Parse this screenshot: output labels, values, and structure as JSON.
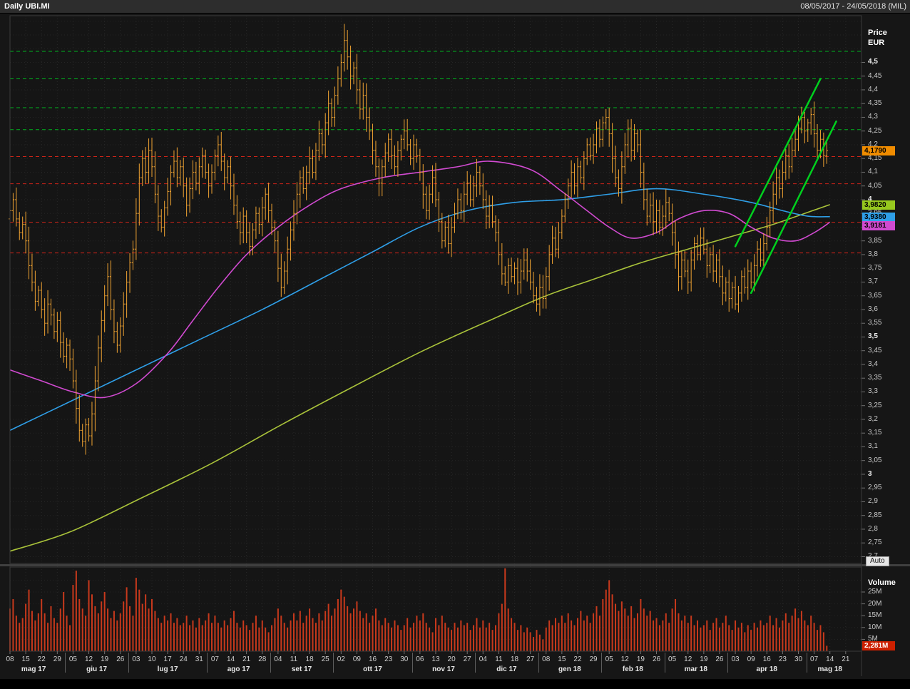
{
  "window": {
    "title_left": "Daily UBI.MI",
    "title_right": "08/05/2017 - 24/05/2018 (MIL)"
  },
  "colors": {
    "background": "#161616",
    "bars": "#f0a332",
    "volume": "#c8391c",
    "ma_fast": "#d04ad0",
    "ma_mid": "#2f9fe8",
    "ma_slow": "#a9c23a",
    "resistance": "#00b41e",
    "support": "#cd2418",
    "trendline": "#00d01e"
  },
  "price_axis": {
    "title_price": "Price",
    "title_currency": "EUR",
    "auto_button": "Auto",
    "ticks": [
      {
        "label": "4,5",
        "value": 4.5,
        "bold": true
      },
      {
        "label": "4,45",
        "value": 4.45,
        "bold": false
      },
      {
        "label": "4,4",
        "value": 4.4,
        "bold": false
      },
      {
        "label": "4,35",
        "value": 4.35,
        "bold": false
      },
      {
        "label": "4,3",
        "value": 4.3,
        "bold": false
      },
      {
        "label": "4,25",
        "value": 4.25,
        "bold": false
      },
      {
        "label": "4,2",
        "value": 4.2,
        "bold": false
      },
      {
        "label": "4,15",
        "value": 4.15,
        "bold": false
      },
      {
        "label": "4,1",
        "value": 4.1,
        "bold": false
      },
      {
        "label": "4,05",
        "value": 4.05,
        "bold": false
      },
      {
        "label": "4",
        "value": 4.0,
        "bold": true
      },
      {
        "label": "3,95",
        "value": 3.95,
        "bold": false
      },
      {
        "label": "3,9",
        "value": 3.9,
        "bold": false
      },
      {
        "label": "3,85",
        "value": 3.85,
        "bold": false
      },
      {
        "label": "3,8",
        "value": 3.8,
        "bold": false
      },
      {
        "label": "3,75",
        "value": 3.75,
        "bold": false
      },
      {
        "label": "3,7",
        "value": 3.7,
        "bold": false
      },
      {
        "label": "3,65",
        "value": 3.65,
        "bold": false
      },
      {
        "label": "3,6",
        "value": 3.6,
        "bold": false
      },
      {
        "label": "3,55",
        "value": 3.55,
        "bold": false
      },
      {
        "label": "3,5",
        "value": 3.5,
        "bold": true
      },
      {
        "label": "3,45",
        "value": 3.45,
        "bold": false
      },
      {
        "label": "3,4",
        "value": 3.4,
        "bold": false
      },
      {
        "label": "3,35",
        "value": 3.35,
        "bold": false
      },
      {
        "label": "3,3",
        "value": 3.3,
        "bold": false
      },
      {
        "label": "3,25",
        "value": 3.25,
        "bold": false
      },
      {
        "label": "3,2",
        "value": 3.2,
        "bold": false
      },
      {
        "label": "3,15",
        "value": 3.15,
        "bold": false
      },
      {
        "label": "3,1",
        "value": 3.1,
        "bold": false
      },
      {
        "label": "3,05",
        "value": 3.05,
        "bold": false
      },
      {
        "label": "3",
        "value": 3.0,
        "bold": true
      },
      {
        "label": "2,95",
        "value": 2.95,
        "bold": false
      },
      {
        "label": "2,9",
        "value": 2.9,
        "bold": false
      },
      {
        "label": "2,85",
        "value": 2.85,
        "bold": false
      },
      {
        "label": "2,8",
        "value": 2.8,
        "bold": false
      },
      {
        "label": "2,75",
        "value": 2.75,
        "bold": false
      },
      {
        "label": "2,7",
        "value": 2.7,
        "bold": false
      }
    ],
    "badges": [
      {
        "name": "last-price",
        "label": "4,1790",
        "value": 4.179,
        "color": "#f08c00",
        "text_color": "#000"
      },
      {
        "name": "ma-slow",
        "label": "3,9820",
        "value": 3.982,
        "color": "#96c81e",
        "text_color": "#000"
      },
      {
        "name": "ma-mid",
        "label": "3,9380",
        "value": 3.938,
        "color": "#2f9fe8",
        "text_color": "#000"
      },
      {
        "name": "ma-fast",
        "label": "3,9181",
        "value": 3.9181,
        "color": "#d04ad0",
        "text_color": "#000"
      }
    ]
  },
  "volume_axis": {
    "title": "Volume",
    "ticks": [
      {
        "label": "25M",
        "value": 25
      },
      {
        "label": "20M",
        "value": 20
      },
      {
        "label": "15M",
        "value": 15
      },
      {
        "label": "10M",
        "value": 10
      },
      {
        "label": "5M",
        "value": 5
      }
    ],
    "badge": {
      "label": "2,281M",
      "value": 2.281,
      "color": "#cd2000",
      "text_color": "#fff"
    }
  },
  "x_axis": {
    "day_ticks": [
      [
        "08",
        0
      ],
      [
        "15",
        5
      ],
      [
        "22",
        10
      ],
      [
        "29",
        15
      ],
      [
        "05",
        20
      ],
      [
        "12",
        25
      ],
      [
        "19",
        30
      ],
      [
        "26",
        35
      ],
      [
        "03",
        40
      ],
      [
        "10",
        45
      ],
      [
        "17",
        50
      ],
      [
        "24",
        55
      ],
      [
        "31",
        60
      ],
      [
        "07",
        65
      ],
      [
        "14",
        70
      ],
      [
        "21",
        75
      ],
      [
        "28",
        80
      ],
      [
        "04",
        85
      ],
      [
        "11",
        90
      ],
      [
        "18",
        95
      ],
      [
        "25",
        100
      ],
      [
        "02",
        105
      ],
      [
        "09",
        110
      ],
      [
        "16",
        115
      ],
      [
        "23",
        120
      ],
      [
        "30",
        125
      ],
      [
        "06",
        130
      ],
      [
        "13",
        135
      ],
      [
        "20",
        140
      ],
      [
        "27",
        145
      ],
      [
        "04",
        150
      ],
      [
        "11",
        155
      ],
      [
        "18",
        160
      ],
      [
        "27",
        165
      ],
      [
        "08",
        170
      ],
      [
        "15",
        175
      ],
      [
        "22",
        180
      ],
      [
        "29",
        185
      ],
      [
        "05",
        190
      ],
      [
        "12",
        195
      ],
      [
        "19",
        200
      ],
      [
        "26",
        205
      ],
      [
        "05",
        210
      ],
      [
        "12",
        215
      ],
      [
        "19",
        220
      ],
      [
        "26",
        225
      ],
      [
        "03",
        230
      ],
      [
        "09",
        235
      ],
      [
        "16",
        240
      ],
      [
        "23",
        245
      ],
      [
        "30",
        250
      ],
      [
        "07",
        255
      ],
      [
        "14",
        260
      ],
      [
        "21",
        265
      ]
    ],
    "months": [
      [
        "mag 17",
        7.5
      ],
      [
        "giu 17",
        27.5
      ],
      [
        "lug 17",
        50
      ],
      [
        "ago 17",
        72.5
      ],
      [
        "set 17",
        92.5
      ],
      [
        "ott 17",
        115
      ],
      [
        "nov 17",
        137.5
      ],
      [
        "dic 17",
        157.5
      ],
      [
        "gen 18",
        177.5
      ],
      [
        "feb 18",
        197.5
      ],
      [
        "mar 18",
        217.5
      ],
      [
        "apr 18",
        240
      ],
      [
        "mag 18",
        260
      ]
    ],
    "boundaries": [
      17.5,
      37.5,
      62.5,
      82.5,
      102.5,
      127.5,
      147.5,
      167.5,
      187.5,
      207.5,
      227.5,
      252.5
    ]
  },
  "chart_data": {
    "type": "ohlc+volume",
    "instrument": "UBI.MI",
    "interval": "Daily",
    "currency": "EUR",
    "date_range": "08/05/2017 - 24/05/2018",
    "price_ylim": [
      2.675,
      4.67
    ],
    "volume_ylim_millions": [
      0,
      36
    ],
    "last_price": 4.179,
    "first_open": 3.93,
    "closes": [
      3.96,
      4.0,
      3.93,
      3.88,
      3.91,
      3.85,
      3.76,
      3.7,
      3.63,
      3.67,
      3.6,
      3.55,
      3.62,
      3.58,
      3.52,
      3.56,
      3.48,
      3.43,
      3.47,
      3.42,
      3.34,
      3.24,
      3.16,
      3.12,
      3.18,
      3.14,
      3.22,
      3.34,
      3.46,
      3.56,
      3.65,
      3.72,
      3.6,
      3.52,
      3.47,
      3.54,
      3.62,
      3.7,
      3.77,
      3.82,
      3.95,
      4.08,
      4.15,
      4.1,
      4.18,
      4.12,
      4.02,
      3.94,
      3.9,
      3.97,
      4.03,
      4.1,
      4.14,
      4.08,
      4.12,
      4.05,
      3.98,
      4.04,
      4.1,
      4.06,
      4.12,
      4.16,
      4.1,
      4.05,
      4.1,
      4.16,
      4.2,
      4.14,
      4.08,
      4.12,
      4.05,
      3.98,
      3.92,
      3.88,
      3.94,
      3.88,
      3.83,
      3.89,
      3.95,
      3.91,
      3.97,
      4.02,
      3.96,
      3.9,
      3.85,
      3.75,
      3.68,
      3.74,
      3.82,
      3.89,
      3.95,
      4.02,
      4.08,
      4.04,
      4.1,
      4.15,
      4.1,
      4.18,
      4.24,
      4.2,
      4.28,
      4.35,
      4.3,
      4.38,
      4.44,
      4.5,
      4.58,
      4.52,
      4.45,
      4.48,
      4.4,
      4.33,
      4.38,
      4.3,
      4.25,
      4.18,
      4.12,
      4.06,
      4.12,
      4.17,
      4.22,
      4.16,
      4.12,
      4.18,
      4.22,
      4.25,
      4.2,
      4.15,
      4.2,
      4.16,
      4.1,
      4.02,
      3.96,
      4.02,
      4.08,
      4.0,
      3.92,
      3.85,
      3.9,
      3.84,
      3.9,
      3.95,
      4.0,
      3.96,
      4.02,
      4.06,
      4.0,
      4.05,
      4.1,
      4.05,
      4.0,
      3.94,
      3.98,
      3.92,
      3.88,
      3.8,
      3.73,
      3.7,
      3.76,
      3.72,
      3.75,
      3.7,
      3.74,
      3.78,
      3.74,
      3.7,
      3.65,
      3.62,
      3.68,
      3.64,
      3.72,
      3.8,
      3.86,
      3.82,
      3.88,
      3.94,
      4.0,
      4.05,
      4.1,
      4.05,
      4.12,
      4.08,
      4.15,
      4.2,
      4.16,
      4.2,
      4.26,
      4.22,
      4.28,
      4.3,
      4.24,
      4.15,
      4.08,
      4.04,
      4.12,
      4.2,
      4.26,
      4.18,
      4.24,
      4.2,
      4.1,
      4.0,
      3.94,
      3.98,
      3.92,
      3.96,
      3.9,
      3.94,
      3.99,
      3.95,
      3.88,
      3.8,
      3.72,
      3.78,
      3.74,
      3.7,
      3.78,
      3.84,
      3.8,
      3.86,
      3.82,
      3.76,
      3.8,
      3.74,
      3.78,
      3.72,
      3.66,
      3.7,
      3.64,
      3.68,
      3.62,
      3.66,
      3.72,
      3.68,
      3.74,
      3.7,
      3.76,
      3.82,
      3.78,
      3.84,
      3.9,
      3.96,
      4.02,
      4.08,
      4.04,
      4.1,
      4.16,
      4.12,
      4.18,
      4.22,
      4.26,
      4.3,
      4.25,
      4.28,
      4.31,
      4.24,
      4.18,
      4.22,
      4.16,
      4.179
    ],
    "high_overrides": {
      "0": 4.02,
      "106": 4.64,
      "189": 4.33
    },
    "low_overrides": {
      "0": 3.82,
      "23": 3.1
    },
    "volumes_millions": [
      18,
      22,
      15,
      12,
      14,
      20,
      26,
      17,
      13,
      16,
      22,
      16,
      12,
      19,
      14,
      12,
      18,
      25,
      15,
      11,
      28,
      34,
      22,
      18,
      15,
      30,
      24,
      19,
      16,
      21,
      25,
      18,
      14,
      17,
      13,
      16,
      21,
      27,
      19,
      15,
      31,
      26,
      20,
      24,
      18,
      22,
      17,
      14,
      12,
      15,
      13,
      16,
      12,
      14,
      11,
      12,
      15,
      11,
      13,
      10,
      14,
      11,
      13,
      16,
      12,
      15,
      12,
      10,
      13,
      11,
      14,
      17,
      12,
      10,
      13,
      11,
      9,
      12,
      15,
      10,
      13,
      10,
      8,
      11,
      14,
      18,
      15,
      12,
      10,
      13,
      16,
      13,
      17,
      12,
      15,
      18,
      14,
      12,
      16,
      13,
      17,
      20,
      15,
      18,
      22,
      26,
      23,
      19,
      16,
      18,
      21,
      17,
      14,
      16,
      12,
      15,
      18,
      13,
      11,
      14,
      12,
      10,
      13,
      11,
      9,
      11,
      14,
      10,
      12,
      15,
      13,
      16,
      12,
      10,
      8,
      14,
      11,
      15,
      12,
      10,
      9,
      12,
      10,
      13,
      11,
      12,
      9,
      11,
      14,
      10,
      13,
      10,
      12,
      9,
      11,
      16,
      20,
      35,
      18,
      14,
      12,
      9,
      11,
      8,
      10,
      8,
      6,
      9,
      7,
      5,
      10,
      13,
      11,
      14,
      12,
      15,
      12,
      16,
      13,
      11,
      14,
      17,
      13,
      15,
      12,
      16,
      19,
      15,
      22,
      26,
      30,
      24,
      20,
      17,
      21,
      18,
      15,
      19,
      14,
      16,
      22,
      18,
      15,
      17,
      13,
      14,
      11,
      13,
      16,
      12,
      18,
      22,
      16,
      13,
      15,
      12,
      15,
      11,
      13,
      10,
      11,
      13,
      9,
      12,
      14,
      10,
      12,
      15,
      11,
      9,
      13,
      10,
      12,
      8,
      11,
      9,
      12,
      10,
      13,
      11,
      12,
      15,
      11,
      14,
      10,
      13,
      16,
      12,
      15,
      18,
      14,
      17,
      13,
      11,
      15,
      12,
      9,
      11,
      8,
      2.281
    ],
    "moving_averages": [
      {
        "name": "ma-slow-green",
        "color": "#a9c23a",
        "last_value": 3.982,
        "points": [
          [
            0,
            2.72
          ],
          [
            19,
            2.79
          ],
          [
            41,
            2.91
          ],
          [
            64,
            3.04
          ],
          [
            86,
            3.18
          ],
          [
            109,
            3.32
          ],
          [
            131,
            3.45
          ],
          [
            154,
            3.57
          ],
          [
            170,
            3.65
          ],
          [
            185,
            3.71
          ],
          [
            200,
            3.77
          ],
          [
            215,
            3.82
          ],
          [
            230,
            3.87
          ],
          [
            242,
            3.91
          ],
          [
            252,
            3.95
          ],
          [
            260,
            3.982
          ]
        ]
      },
      {
        "name": "ma-mid-blue",
        "color": "#2f9fe8",
        "last_value": 3.938,
        "points": [
          [
            0,
            3.16
          ],
          [
            20,
            3.27
          ],
          [
            40,
            3.38
          ],
          [
            60,
            3.49
          ],
          [
            80,
            3.6
          ],
          [
            100,
            3.72
          ],
          [
            115,
            3.81
          ],
          [
            130,
            3.9
          ],
          [
            145,
            3.96
          ],
          [
            160,
            3.99
          ],
          [
            175,
            4.0
          ],
          [
            190,
            4.02
          ],
          [
            205,
            4.04
          ],
          [
            220,
            4.02
          ],
          [
            235,
            3.99
          ],
          [
            245,
            3.96
          ],
          [
            253,
            3.94
          ],
          [
            260,
            3.938
          ]
        ]
      },
      {
        "name": "ma-fast-magenta",
        "color": "#d04ad0",
        "last_value": 3.9181,
        "points": [
          [
            0,
            3.38
          ],
          [
            10,
            3.34
          ],
          [
            20,
            3.3
          ],
          [
            30,
            3.28
          ],
          [
            40,
            3.33
          ],
          [
            50,
            3.44
          ],
          [
            58,
            3.56
          ],
          [
            66,
            3.68
          ],
          [
            75,
            3.8
          ],
          [
            85,
            3.9
          ],
          [
            95,
            3.98
          ],
          [
            105,
            4.04
          ],
          [
            118,
            4.08
          ],
          [
            130,
            4.1
          ],
          [
            142,
            4.12
          ],
          [
            152,
            4.14
          ],
          [
            165,
            4.11
          ],
          [
            175,
            4.03
          ],
          [
            183,
            3.96
          ],
          [
            190,
            3.9
          ],
          [
            197,
            3.86
          ],
          [
            205,
            3.88
          ],
          [
            212,
            3.93
          ],
          [
            220,
            3.96
          ],
          [
            228,
            3.95
          ],
          [
            235,
            3.9
          ],
          [
            242,
            3.86
          ],
          [
            249,
            3.85
          ],
          [
            255,
            3.88
          ],
          [
            260,
            3.918
          ]
        ]
      }
    ],
    "levels": {
      "resistance_green": [
        4.54,
        4.44,
        4.335,
        4.255
      ],
      "support_red": [
        4.157,
        4.058,
        3.918,
        3.806
      ]
    },
    "trendlines": [
      {
        "from": [
          230,
          3.83
        ],
        "to": [
          257,
          4.44
        ]
      },
      {
        "from": [
          235,
          3.66
        ],
        "to": [
          262,
          4.285
        ]
      }
    ]
  }
}
